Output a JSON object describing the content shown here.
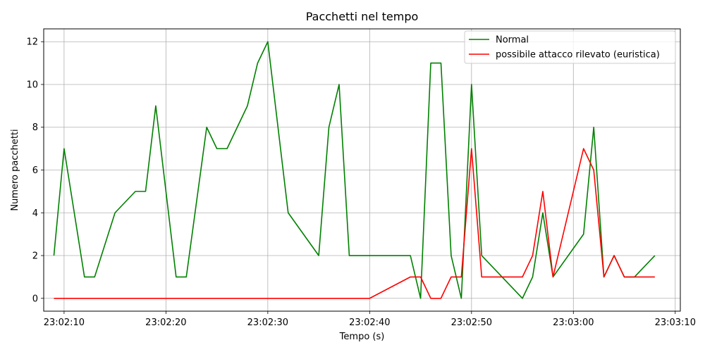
{
  "chart_data": {
    "type": "line",
    "title": "Pacchetti nel tempo",
    "xlabel": "Tempo (s)",
    "ylabel": "Numero pacchetti",
    "x_unit": "time",
    "xlim": [
      "23:02:08",
      "23:03:10.5"
    ],
    "ylim": [
      -0.6,
      12.6
    ],
    "x_ticks": [
      "23:02:10",
      "23:02:20",
      "23:02:30",
      "23:02:40",
      "23:02:50",
      "23:03:00",
      "23:03:10"
    ],
    "y_ticks": [
      0,
      2,
      4,
      6,
      8,
      10,
      12
    ],
    "grid": true,
    "legend_position": "top-right",
    "series": [
      {
        "name": "Normal",
        "color": "#008000",
        "points": [
          [
            "23:02:09",
            2
          ],
          [
            "23:02:10",
            7
          ],
          [
            "23:02:12",
            1
          ],
          [
            "23:02:13",
            1
          ],
          [
            "23:02:15",
            4
          ],
          [
            "23:02:17",
            5
          ],
          [
            "23:02:18",
            5
          ],
          [
            "23:02:19",
            9
          ],
          [
            "23:02:21",
            1
          ],
          [
            "23:02:22",
            1
          ],
          [
            "23:02:24",
            8
          ],
          [
            "23:02:25",
            7
          ],
          [
            "23:02:26",
            7
          ],
          [
            "23:02:28",
            9
          ],
          [
            "23:02:29",
            11
          ],
          [
            "23:02:30",
            12
          ],
          [
            "23:02:32",
            4
          ],
          [
            "23:02:35",
            2
          ],
          [
            "23:02:36",
            8
          ],
          [
            "23:02:37",
            10
          ],
          [
            "23:02:38",
            2
          ],
          [
            "23:02:40",
            2
          ],
          [
            "23:02:44",
            2
          ],
          [
            "23:02:45",
            0
          ],
          [
            "23:02:46",
            11
          ],
          [
            "23:02:47",
            11
          ],
          [
            "23:02:48",
            2
          ],
          [
            "23:02:49",
            0
          ],
          [
            "23:02:50",
            10
          ],
          [
            "23:02:51",
            2
          ],
          [
            "23:02:55",
            0
          ],
          [
            "23:02:56",
            1
          ],
          [
            "23:02:57",
            4
          ],
          [
            "23:02:58",
            1
          ],
          [
            "23:03:01",
            3
          ],
          [
            "23:03:02",
            8
          ],
          [
            "23:03:03",
            1
          ],
          [
            "23:03:04",
            2
          ],
          [
            "23:03:05",
            1
          ],
          [
            "23:03:06",
            1
          ],
          [
            "23:03:08",
            2
          ]
        ]
      },
      {
        "name": "possibile attacco rilevato (euristica)",
        "color": "#ff0000",
        "points": [
          [
            "23:02:09",
            0
          ],
          [
            "23:02:40",
            0
          ],
          [
            "23:02:44",
            1
          ],
          [
            "23:02:45",
            1
          ],
          [
            "23:02:46",
            0
          ],
          [
            "23:02:47",
            0
          ],
          [
            "23:02:48",
            1
          ],
          [
            "23:02:49",
            1
          ],
          [
            "23:02:50",
            7
          ],
          [
            "23:02:51",
            1
          ],
          [
            "23:02:55",
            1
          ],
          [
            "23:02:56",
            2
          ],
          [
            "23:02:57",
            5
          ],
          [
            "23:02:58",
            1
          ],
          [
            "23:03:01",
            7
          ],
          [
            "23:03:02",
            6
          ],
          [
            "23:03:03",
            1
          ],
          [
            "23:03:04",
            2
          ],
          [
            "23:03:05",
            1
          ],
          [
            "23:03:08",
            1
          ]
        ]
      }
    ]
  }
}
